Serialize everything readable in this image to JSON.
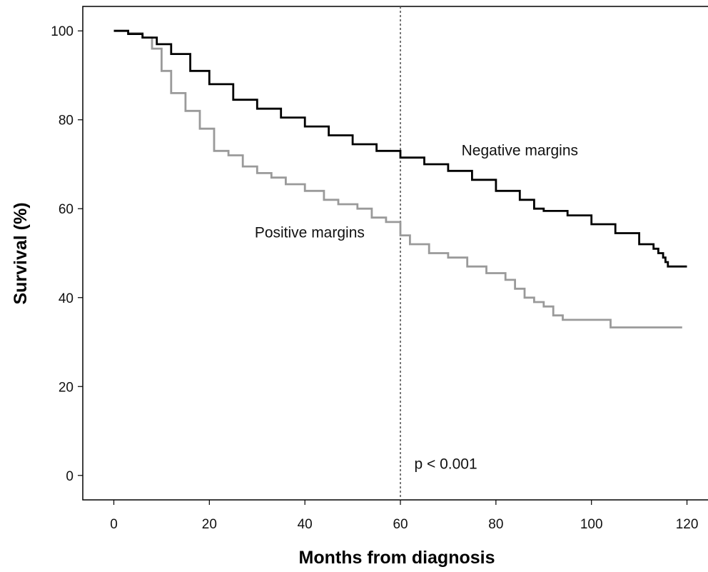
{
  "chart_data": {
    "type": "line",
    "xlabel": "Months from diagnosis",
    "ylabel": "Survival (%)",
    "xlim": [
      -6.5,
      125
    ],
    "ylim": [
      -5.5,
      105.5
    ],
    "x_ticks": [
      0,
      20,
      40,
      60,
      80,
      100,
      120
    ],
    "y_ticks": [
      0,
      20,
      40,
      60,
      80,
      100
    ],
    "grid": false,
    "step": true,
    "series": [
      {
        "name": "Negative margins",
        "color": "#000000",
        "x": [
          0,
          3,
          6,
          9,
          12,
          16,
          20,
          25,
          30,
          35,
          40,
          45,
          50,
          55,
          60,
          65,
          70,
          75,
          80,
          85,
          88,
          90,
          95,
          100,
          105,
          110,
          113,
          114,
          115,
          115.5,
          116,
          120
        ],
        "y": [
          100,
          99.3,
          98.5,
          97,
          94.8,
          91,
          88,
          84.5,
          82.5,
          80.5,
          78.5,
          76.5,
          74.5,
          73,
          71.5,
          70,
          68.5,
          66.5,
          64,
          62,
          60,
          59.5,
          58.5,
          56.5,
          54.5,
          52,
          51,
          50,
          49,
          48,
          47,
          47
        ]
      },
      {
        "name": "Positive margins",
        "color": "#9a9a9a",
        "x": [
          0,
          3,
          6,
          8,
          10,
          12,
          15,
          18,
          21,
          24,
          27,
          30,
          33,
          36,
          40,
          44,
          47,
          51,
          54,
          57,
          60,
          62,
          66,
          70,
          74,
          78,
          82,
          84,
          86,
          88,
          90,
          92,
          94,
          96,
          100,
          104,
          108,
          113,
          119
        ],
        "y": [
          100,
          99.5,
          98.5,
          96,
          91,
          86,
          82,
          78,
          73,
          72,
          69.5,
          68,
          67,
          65.5,
          64,
          62,
          61,
          60,
          58,
          57,
          54,
          52,
          50,
          49,
          47,
          45.5,
          44,
          42,
          40,
          39,
          38,
          36,
          35,
          35,
          35,
          33.3,
          33.3,
          33.3,
          33.3
        ]
      }
    ],
    "annotations": [
      {
        "text": "Negative margins",
        "x": 85,
        "y": 72
      },
      {
        "text": "Positive margins",
        "x": 41,
        "y": 53.5
      },
      {
        "text": "p < 0.001",
        "x": 69.5,
        "y": 1.5
      }
    ],
    "reference_line": {
      "x": 60,
      "style": "dotted",
      "color": "#555555"
    }
  }
}
